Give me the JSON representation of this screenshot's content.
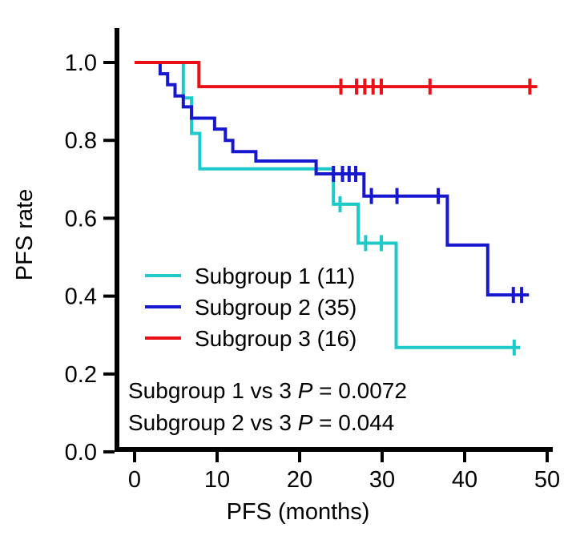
{
  "figure": {
    "background": "#ffffff",
    "axis_color": "#000000"
  },
  "chart_data": {
    "type": "line",
    "subtype": "kaplan_meier_step",
    "title": "",
    "xlabel": "PFS (months)",
    "ylabel": "PFS rate",
    "xlim": [
      0,
      50
    ],
    "ylim": [
      0.0,
      1.0
    ],
    "xticks": [
      0,
      10,
      20,
      30,
      40,
      50
    ],
    "xticklabels": [
      "0",
      "10",
      "20",
      "30",
      "40",
      "50"
    ],
    "yticks": [
      1.0,
      0.8,
      0.6,
      0.4,
      0.2,
      0.0
    ],
    "yticklabels": [
      "1.0",
      "0.8",
      "0.6",
      "0.4",
      "0.2",
      "0.0"
    ],
    "grid": false,
    "legend_position": "inside-left-middle",
    "series": [
      {
        "name": "Subgroup 1 (11)",
        "n": 11,
        "color": "#1ec9c9",
        "steps": [
          [
            0,
            1.0
          ],
          [
            5.9,
            1.0
          ],
          [
            5.9,
            0.909
          ],
          [
            6.9,
            0.909
          ],
          [
            6.9,
            0.818
          ],
          [
            7.9,
            0.818
          ],
          [
            7.9,
            0.727
          ],
          [
            24.1,
            0.727
          ],
          [
            24.1,
            0.636
          ],
          [
            27.1,
            0.636
          ],
          [
            27.1,
            0.536
          ],
          [
            31.7,
            0.536
          ],
          [
            31.7,
            0.268
          ],
          [
            46.7,
            0.268
          ]
        ],
        "censors": [
          [
            24.9,
            0.636
          ],
          [
            28.0,
            0.536
          ],
          [
            29.9,
            0.536
          ],
          [
            46.0,
            0.268
          ]
        ]
      },
      {
        "name": "Subgroup 2 (35)",
        "n": 35,
        "color": "#1717cf",
        "steps": [
          [
            0,
            1.0
          ],
          [
            3.1,
            1.0
          ],
          [
            3.1,
            0.971
          ],
          [
            4.0,
            0.971
          ],
          [
            4.0,
            0.943
          ],
          [
            4.9,
            0.943
          ],
          [
            4.9,
            0.914
          ],
          [
            5.9,
            0.914
          ],
          [
            5.9,
            0.886
          ],
          [
            6.9,
            0.886
          ],
          [
            6.9,
            0.857
          ],
          [
            9.7,
            0.857
          ],
          [
            9.7,
            0.829
          ],
          [
            11.0,
            0.829
          ],
          [
            11.0,
            0.8
          ],
          [
            11.9,
            0.8
          ],
          [
            11.9,
            0.771
          ],
          [
            14.7,
            0.771
          ],
          [
            14.7,
            0.747
          ],
          [
            22.0,
            0.747
          ],
          [
            22.0,
            0.714
          ],
          [
            27.8,
            0.714
          ],
          [
            27.8,
            0.657
          ],
          [
            37.9,
            0.657
          ],
          [
            37.9,
            0.531
          ],
          [
            42.8,
            0.531
          ],
          [
            42.8,
            0.403
          ],
          [
            47.8,
            0.403
          ]
        ],
        "censors": [
          [
            24.1,
            0.714
          ],
          [
            25.2,
            0.714
          ],
          [
            26.0,
            0.714
          ],
          [
            26.8,
            0.714
          ],
          [
            28.7,
            0.657
          ],
          [
            31.8,
            0.657
          ],
          [
            36.8,
            0.657
          ],
          [
            45.9,
            0.403
          ],
          [
            46.9,
            0.403
          ]
        ]
      },
      {
        "name": "Subgroup 3 (16)",
        "n": 16,
        "color": "#ea1018",
        "steps": [
          [
            0,
            1.0
          ],
          [
            7.8,
            1.0
          ],
          [
            7.8,
            0.938
          ],
          [
            48.8,
            0.938
          ]
        ],
        "censors": [
          [
            25.0,
            0.938
          ],
          [
            26.9,
            0.938
          ],
          [
            27.9,
            0.938
          ],
          [
            28.9,
            0.938
          ],
          [
            29.9,
            0.938
          ],
          [
            35.8,
            0.938
          ],
          [
            47.9,
            0.938
          ]
        ]
      }
    ],
    "annotations": [
      {
        "text": "Subgroup 1 vs 3 P = 0.0072",
        "comparison": "Subgroup 1 vs 3",
        "p_symbol": "P",
        "p_value": "= 0.0072"
      },
      {
        "text": "Subgroup 2 vs 3 P = 0.044",
        "comparison": "Subgroup 2 vs 3",
        "p_symbol": "P",
        "p_value": "= 0.044"
      }
    ]
  }
}
